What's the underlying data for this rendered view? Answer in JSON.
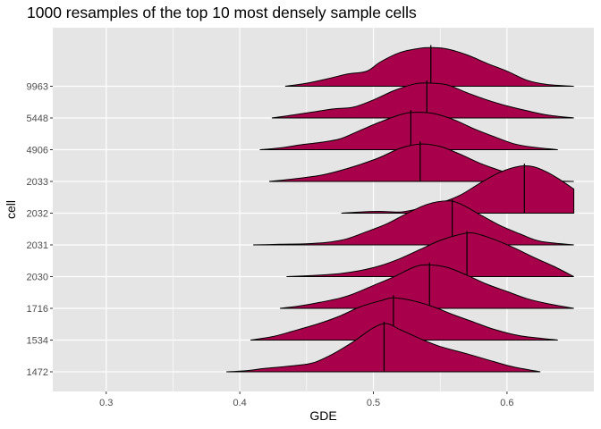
{
  "chart_data": {
    "type": "ridgeline",
    "title": "1000 resamples of the top 10 most densely sample cells",
    "xlabel": "GDE",
    "ylabel": "cell",
    "xlim": [
      0.26,
      0.665
    ],
    "x_ticks": [
      0.3,
      0.4,
      0.5,
      0.6
    ],
    "x_tick_labels": [
      "0.3",
      "0.4",
      "0.5",
      "0.6"
    ],
    "categories": [
      "1472",
      "1534",
      "1716",
      "2030",
      "2031",
      "2032",
      "2033",
      "4906",
      "5448",
      "9963"
    ],
    "fill_color": "#A8004A",
    "panel_background": "#E5E5E5",
    "grid_color": "#FFFFFF",
    "grid": true,
    "ridge_height_scale": 1.9,
    "series": [
      {
        "name": "1472",
        "median": 0.508,
        "density": [
          [
            0.39,
            0
          ],
          [
            0.405,
            0.02
          ],
          [
            0.42,
            0.06
          ],
          [
            0.44,
            0.1
          ],
          [
            0.455,
            0.15
          ],
          [
            0.47,
            0.3
          ],
          [
            0.485,
            0.5
          ],
          [
            0.5,
            0.73
          ],
          [
            0.51,
            0.8
          ],
          [
            0.52,
            0.7
          ],
          [
            0.535,
            0.55
          ],
          [
            0.55,
            0.42
          ],
          [
            0.57,
            0.3
          ],
          [
            0.59,
            0.17
          ],
          [
            0.605,
            0.08
          ],
          [
            0.625,
            0
          ]
        ]
      },
      {
        "name": "1534",
        "median": 0.515,
        "density": [
          [
            0.408,
            0
          ],
          [
            0.425,
            0.06
          ],
          [
            0.44,
            0.15
          ],
          [
            0.46,
            0.28
          ],
          [
            0.475,
            0.4
          ],
          [
            0.49,
            0.55
          ],
          [
            0.505,
            0.65
          ],
          [
            0.515,
            0.7
          ],
          [
            0.53,
            0.65
          ],
          [
            0.545,
            0.55
          ],
          [
            0.56,
            0.42
          ],
          [
            0.575,
            0.3
          ],
          [
            0.59,
            0.18
          ],
          [
            0.61,
            0.07
          ],
          [
            0.638,
            0
          ]
        ]
      },
      {
        "name": "1716",
        "median": 0.542,
        "density": [
          [
            0.43,
            0
          ],
          [
            0.445,
            0.04
          ],
          [
            0.46,
            0.1
          ],
          [
            0.48,
            0.2
          ],
          [
            0.5,
            0.38
          ],
          [
            0.515,
            0.52
          ],
          [
            0.53,
            0.68
          ],
          [
            0.54,
            0.72
          ],
          [
            0.555,
            0.68
          ],
          [
            0.57,
            0.55
          ],
          [
            0.585,
            0.4
          ],
          [
            0.6,
            0.28
          ],
          [
            0.615,
            0.16
          ],
          [
            0.63,
            0.08
          ],
          [
            0.65,
            0
          ]
        ]
      },
      {
        "name": "2030",
        "median": 0.57,
        "density": [
          [
            0.435,
            0
          ],
          [
            0.455,
            0.02
          ],
          [
            0.475,
            0.05
          ],
          [
            0.49,
            0.1
          ],
          [
            0.505,
            0.18
          ],
          [
            0.52,
            0.3
          ],
          [
            0.535,
            0.45
          ],
          [
            0.55,
            0.6
          ],
          [
            0.565,
            0.7
          ],
          [
            0.575,
            0.72
          ],
          [
            0.59,
            0.62
          ],
          [
            0.605,
            0.48
          ],
          [
            0.62,
            0.32
          ],
          [
            0.635,
            0.17
          ],
          [
            0.65,
            0
          ]
        ]
      },
      {
        "name": "2031",
        "median": 0.559,
        "density": [
          [
            0.41,
            0
          ],
          [
            0.43,
            0.01
          ],
          [
            0.45,
            0.02
          ],
          [
            0.465,
            0.04
          ],
          [
            0.48,
            0.1
          ],
          [
            0.495,
            0.22
          ],
          [
            0.51,
            0.35
          ],
          [
            0.525,
            0.52
          ],
          [
            0.54,
            0.67
          ],
          [
            0.555,
            0.73
          ],
          [
            0.565,
            0.68
          ],
          [
            0.58,
            0.5
          ],
          [
            0.595,
            0.32
          ],
          [
            0.61,
            0.18
          ],
          [
            0.625,
            0.06
          ],
          [
            0.65,
            0
          ]
        ]
      },
      {
        "name": "2032",
        "median": 0.613,
        "density": [
          [
            0.476,
            0
          ],
          [
            0.49,
            0.02
          ],
          [
            0.505,
            0.03
          ],
          [
            0.52,
            0.02
          ],
          [
            0.535,
            0.08
          ],
          [
            0.55,
            0.17
          ],
          [
            0.565,
            0.3
          ],
          [
            0.58,
            0.5
          ],
          [
            0.595,
            0.68
          ],
          [
            0.61,
            0.78
          ],
          [
            0.62,
            0.77
          ],
          [
            0.63,
            0.68
          ],
          [
            0.64,
            0.55
          ],
          [
            0.65,
            0.4
          ]
        ]
      },
      {
        "name": "2033",
        "median": 0.535,
        "density": [
          [
            0.422,
            0
          ],
          [
            0.44,
            0.04
          ],
          [
            0.46,
            0.1
          ],
          [
            0.475,
            0.18
          ],
          [
            0.49,
            0.28
          ],
          [
            0.505,
            0.4
          ],
          [
            0.52,
            0.55
          ],
          [
            0.535,
            0.62
          ],
          [
            0.55,
            0.58
          ],
          [
            0.565,
            0.45
          ],
          [
            0.58,
            0.3
          ],
          [
            0.595,
            0.18
          ],
          [
            0.61,
            0.07
          ],
          [
            0.625,
            0.02
          ],
          [
            0.65,
            0
          ]
        ]
      },
      {
        "name": "4906",
        "median": 0.528,
        "density": [
          [
            0.415,
            0
          ],
          [
            0.43,
            0.03
          ],
          [
            0.445,
            0.08
          ],
          [
            0.46,
            0.12
          ],
          [
            0.475,
            0.18
          ],
          [
            0.49,
            0.32
          ],
          [
            0.505,
            0.46
          ],
          [
            0.52,
            0.58
          ],
          [
            0.53,
            0.62
          ],
          [
            0.545,
            0.6
          ],
          [
            0.56,
            0.5
          ],
          [
            0.575,
            0.35
          ],
          [
            0.59,
            0.22
          ],
          [
            0.605,
            0.1
          ],
          [
            0.62,
            0.04
          ],
          [
            0.638,
            0
          ]
        ]
      },
      {
        "name": "5448",
        "median": 0.54,
        "density": [
          [
            0.424,
            0
          ],
          [
            0.44,
            0.05
          ],
          [
            0.455,
            0.1
          ],
          [
            0.47,
            0.15
          ],
          [
            0.485,
            0.18
          ],
          [
            0.5,
            0.3
          ],
          [
            0.515,
            0.45
          ],
          [
            0.53,
            0.56
          ],
          [
            0.54,
            0.58
          ],
          [
            0.555,
            0.55
          ],
          [
            0.57,
            0.42
          ],
          [
            0.585,
            0.3
          ],
          [
            0.6,
            0.2
          ],
          [
            0.615,
            0.12
          ],
          [
            0.63,
            0.05
          ],
          [
            0.65,
            0
          ]
        ]
      },
      {
        "name": "9963",
        "median": 0.543,
        "density": [
          [
            0.434,
            0
          ],
          [
            0.45,
            0.05
          ],
          [
            0.465,
            0.12
          ],
          [
            0.48,
            0.2
          ],
          [
            0.495,
            0.25
          ],
          [
            0.505,
            0.4
          ],
          [
            0.52,
            0.56
          ],
          [
            0.535,
            0.63
          ],
          [
            0.545,
            0.64
          ],
          [
            0.555,
            0.62
          ],
          [
            0.57,
            0.52
          ],
          [
            0.585,
            0.38
          ],
          [
            0.6,
            0.25
          ],
          [
            0.615,
            0.1
          ],
          [
            0.63,
            0.03
          ],
          [
            0.65,
            0
          ]
        ]
      }
    ]
  }
}
